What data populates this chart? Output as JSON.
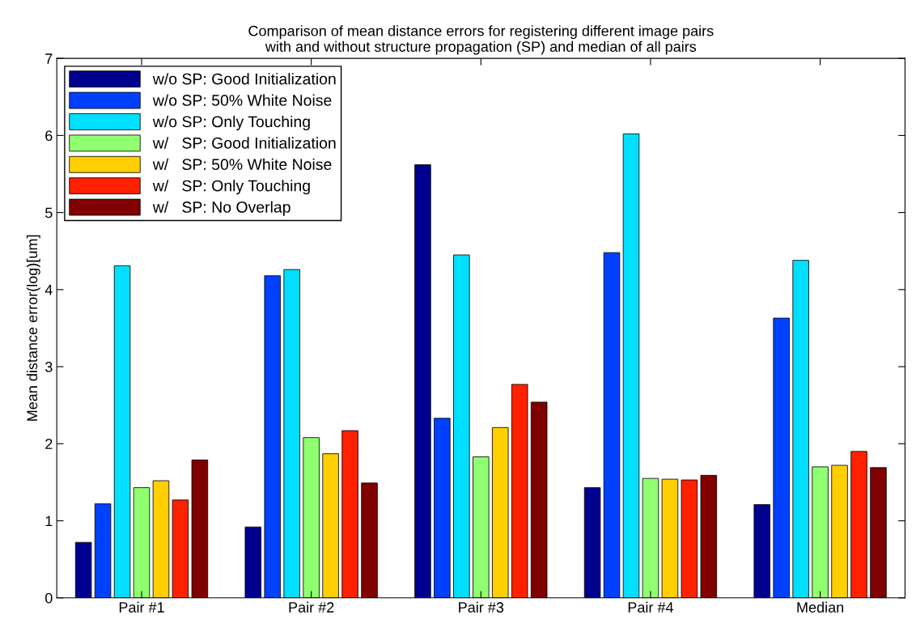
{
  "chart_data": {
    "type": "bar",
    "title": "Comparison of mean distance errors for registering different image pairs\nwith and without structure propagation (SP) and median of all pairs",
    "ylabel": "Mean distance error(log)[um]",
    "categories": [
      "Pair #1",
      "Pair #2",
      "Pair #3",
      "Pair #4",
      "Median"
    ],
    "series": [
      {
        "name": "w/o SP: Good Initialization",
        "color": "#00008f",
        "values": [
          0.72,
          0.92,
          5.62,
          1.43,
          1.21
        ]
      },
      {
        "name": "w/o SP: 50% White Noise",
        "color": "#0040ff",
        "values": [
          1.22,
          4.18,
          2.33,
          4.48,
          3.63
        ]
      },
      {
        "name": "w/o SP: Only Touching",
        "color": "#00dfff",
        "values": [
          4.31,
          4.26,
          4.45,
          6.02,
          4.38
        ]
      },
      {
        "name": "w/   SP: Good Initialization",
        "color": "#90ff70",
        "values": [
          1.43,
          2.08,
          1.83,
          1.55,
          1.7
        ]
      },
      {
        "name": "w/   SP: 50% White Noise",
        "color": "#ffcf00",
        "values": [
          1.52,
          1.87,
          2.21,
          1.54,
          1.72
        ]
      },
      {
        "name": "w/   SP: Only Touching",
        "color": "#ff2000",
        "values": [
          1.27,
          2.17,
          2.77,
          1.53,
          1.9
        ]
      },
      {
        "name": "w/   SP: No Overlap",
        "color": "#800000",
        "values": [
          1.79,
          1.49,
          2.54,
          1.59,
          1.69
        ]
      }
    ],
    "ylim": [
      0,
      7
    ],
    "yticks": [
      0,
      1,
      2,
      3,
      4,
      5,
      6,
      7
    ],
    "legend": "top left",
    "grid": false
  }
}
